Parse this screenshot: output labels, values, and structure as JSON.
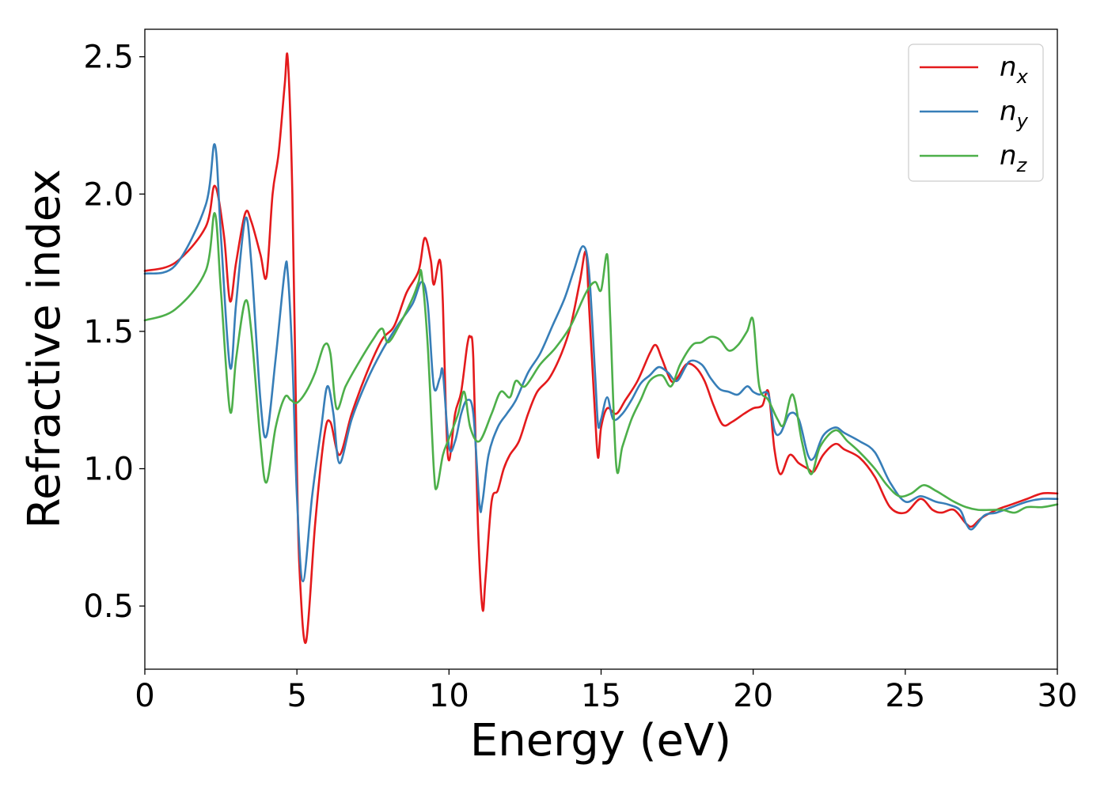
{
  "chart_data": {
    "type": "line",
    "xlabel": "Energy (eV)",
    "ylabel": "Refractive index",
    "xlim": [
      0,
      30
    ],
    "ylim": [
      0.27,
      2.6
    ],
    "xticks": [
      0,
      5,
      10,
      15,
      20,
      25,
      30
    ],
    "xtick_labels": [
      "0",
      "5",
      "10",
      "15",
      "20",
      "25",
      "30"
    ],
    "yticks": [
      0.5,
      1.0,
      1.5,
      2.0,
      2.5
    ],
    "ytick_labels": [
      "0.5",
      "1.0",
      "1.5",
      "2.0",
      "2.5"
    ],
    "grid": false,
    "legend": {
      "placement": "top-right"
    },
    "series": [
      {
        "name": "n",
        "subscript": "x",
        "color": "#e41a1c",
        "x": [
          0,
          1,
          2,
          2.3,
          2.6,
          2.8,
          3.0,
          3.3,
          3.5,
          3.8,
          4.0,
          4.2,
          4.4,
          4.6,
          4.7,
          4.85,
          5.0,
          5.1,
          5.3,
          5.6,
          5.9,
          6.1,
          6.4,
          6.8,
          7.3,
          7.8,
          8.2,
          8.6,
          9.0,
          9.2,
          9.4,
          9.5,
          9.7,
          9.8,
          9.9,
          10.0,
          10.2,
          10.4,
          10.6,
          10.7,
          10.8,
          10.95,
          11.1,
          11.2,
          11.4,
          11.6,
          11.8,
          12.0,
          12.3,
          12.6,
          12.9,
          13.3,
          13.7,
          14.0,
          14.3,
          14.5,
          14.6,
          14.8,
          14.9,
          15.0,
          15.2,
          15.5,
          15.8,
          16.2,
          16.6,
          16.8,
          17.0,
          17.3,
          17.5,
          17.8,
          18.1,
          18.4,
          18.7,
          19.0,
          19.3,
          19.7,
          20.0,
          20.3,
          20.5,
          20.7,
          20.9,
          21.2,
          21.5,
          21.8,
          22.0,
          22.3,
          22.7,
          23.0,
          23.5,
          24.0,
          24.5,
          25.0,
          25.5,
          25.9,
          26.2,
          26.6,
          27.0,
          27.2,
          27.5,
          28.0,
          28.5,
          29.0,
          29.5,
          30.0
        ],
        "values": [
          1.72,
          1.75,
          1.88,
          2.03,
          1.85,
          1.61,
          1.75,
          1.93,
          1.9,
          1.78,
          1.7,
          2.0,
          2.15,
          2.4,
          2.49,
          2.0,
          1.0,
          0.6,
          0.37,
          0.8,
          1.12,
          1.17,
          1.05,
          1.2,
          1.35,
          1.47,
          1.52,
          1.64,
          1.72,
          1.84,
          1.76,
          1.67,
          1.76,
          1.6,
          1.2,
          1.03,
          1.2,
          1.28,
          1.45,
          1.48,
          1.4,
          0.8,
          0.49,
          0.6,
          0.88,
          0.92,
          1.0,
          1.05,
          1.1,
          1.2,
          1.28,
          1.33,
          1.42,
          1.52,
          1.68,
          1.79,
          1.6,
          1.2,
          1.04,
          1.15,
          1.22,
          1.2,
          1.25,
          1.32,
          1.42,
          1.45,
          1.4,
          1.32,
          1.33,
          1.38,
          1.37,
          1.32,
          1.23,
          1.16,
          1.17,
          1.2,
          1.22,
          1.23,
          1.28,
          1.07,
          0.98,
          1.05,
          1.02,
          1.0,
          0.99,
          1.05,
          1.09,
          1.07,
          1.04,
          0.97,
          0.86,
          0.84,
          0.89,
          0.85,
          0.84,
          0.85,
          0.8,
          0.79,
          0.82,
          0.85,
          0.87,
          0.89,
          0.91,
          0.91
        ]
      },
      {
        "name": "n",
        "subscript": "y",
        "color": "#377eb8",
        "x": [
          0,
          1,
          2,
          2.3,
          2.5,
          2.8,
          3.0,
          3.3,
          3.5,
          3.8,
          4.0,
          4.3,
          4.6,
          4.7,
          4.85,
          5.0,
          5.2,
          5.5,
          5.8,
          6.0,
          6.2,
          6.4,
          6.8,
          7.3,
          7.8,
          8.3,
          8.8,
          9.1,
          9.3,
          9.5,
          9.7,
          9.8,
          10.0,
          10.2,
          10.4,
          10.6,
          10.8,
          11.0,
          11.1,
          11.3,
          11.6,
          11.9,
          12.2,
          12.6,
          13.0,
          13.4,
          13.8,
          14.1,
          14.4,
          14.6,
          14.8,
          14.9,
          15.0,
          15.2,
          15.4,
          15.7,
          16.0,
          16.3,
          16.6,
          16.9,
          17.2,
          17.5,
          17.9,
          18.3,
          18.6,
          18.9,
          19.2,
          19.5,
          19.8,
          20.0,
          20.2,
          20.5,
          20.7,
          20.9,
          21.2,
          21.5,
          21.8,
          22.0,
          22.3,
          22.7,
          23.0,
          23.5,
          24.0,
          24.5,
          25.0,
          25.5,
          26.0,
          26.4,
          26.8,
          27.0,
          27.2,
          27.6,
          28.0,
          28.5,
          29.0,
          29.5,
          30.0
        ],
        "values": [
          1.71,
          1.74,
          1.96,
          2.18,
          1.85,
          1.37,
          1.6,
          1.91,
          1.75,
          1.25,
          1.12,
          1.4,
          1.72,
          1.71,
          1.4,
          0.9,
          0.59,
          0.9,
          1.15,
          1.3,
          1.2,
          1.02,
          1.18,
          1.32,
          1.43,
          1.52,
          1.6,
          1.68,
          1.6,
          1.3,
          1.33,
          1.35,
          1.08,
          1.1,
          1.2,
          1.25,
          1.2,
          0.87,
          0.88,
          1.05,
          1.15,
          1.2,
          1.25,
          1.35,
          1.42,
          1.52,
          1.62,
          1.72,
          1.81,
          1.72,
          1.35,
          1.16,
          1.18,
          1.26,
          1.18,
          1.2,
          1.25,
          1.31,
          1.34,
          1.37,
          1.35,
          1.32,
          1.39,
          1.38,
          1.33,
          1.29,
          1.28,
          1.27,
          1.3,
          1.28,
          1.27,
          1.27,
          1.14,
          1.13,
          1.2,
          1.18,
          1.05,
          1.04,
          1.12,
          1.15,
          1.13,
          1.1,
          1.06,
          0.95,
          0.88,
          0.9,
          0.88,
          0.87,
          0.85,
          0.8,
          0.78,
          0.83,
          0.84,
          0.86,
          0.88,
          0.89,
          0.89
        ]
      },
      {
        "name": "n",
        "subscript": "z",
        "color": "#4daf4a",
        "x": [
          0,
          1,
          2,
          2.3,
          2.5,
          2.8,
          3.0,
          3.3,
          3.5,
          3.8,
          4.0,
          4.3,
          4.6,
          4.8,
          5.0,
          5.3,
          5.6,
          5.9,
          6.1,
          6.3,
          6.6,
          7.0,
          7.5,
          7.8,
          8.0,
          8.4,
          8.8,
          9.0,
          9.1,
          9.3,
          9.5,
          9.6,
          9.8,
          10.0,
          10.3,
          10.5,
          10.7,
          11.0,
          11.4,
          11.7,
          12.0,
          12.2,
          12.5,
          13.0,
          13.5,
          14.0,
          14.5,
          14.8,
          15.0,
          15.2,
          15.3,
          15.5,
          15.7,
          16.0,
          16.3,
          16.6,
          17.0,
          17.3,
          17.6,
          18.0,
          18.3,
          18.6,
          18.9,
          19.2,
          19.5,
          19.8,
          20.0,
          20.2,
          20.5,
          20.8,
          21.0,
          21.3,
          21.6,
          21.9,
          22.2,
          22.7,
          23.1,
          23.5,
          24.0,
          24.4,
          24.8,
          25.2,
          25.6,
          26.0,
          26.3,
          26.6,
          27.0,
          27.4,
          27.8,
          28.2,
          28.6,
          29.0,
          29.5,
          30.0
        ],
        "values": [
          1.54,
          1.58,
          1.72,
          1.93,
          1.65,
          1.21,
          1.4,
          1.61,
          1.5,
          1.1,
          0.95,
          1.15,
          1.26,
          1.25,
          1.24,
          1.28,
          1.35,
          1.45,
          1.42,
          1.22,
          1.3,
          1.38,
          1.47,
          1.51,
          1.46,
          1.53,
          1.62,
          1.68,
          1.71,
          1.45,
          1.0,
          0.93,
          1.05,
          1.11,
          1.2,
          1.28,
          1.15,
          1.1,
          1.2,
          1.28,
          1.26,
          1.32,
          1.3,
          1.38,
          1.44,
          1.52,
          1.64,
          1.68,
          1.65,
          1.78,
          1.55,
          1.01,
          1.08,
          1.18,
          1.25,
          1.32,
          1.34,
          1.3,
          1.38,
          1.45,
          1.46,
          1.48,
          1.47,
          1.43,
          1.45,
          1.5,
          1.54,
          1.3,
          1.25,
          1.18,
          1.16,
          1.27,
          1.1,
          0.98,
          1.08,
          1.14,
          1.1,
          1.06,
          1.0,
          0.94,
          0.9,
          0.91,
          0.94,
          0.92,
          0.9,
          0.88,
          0.86,
          0.85,
          0.85,
          0.85,
          0.84,
          0.86,
          0.86,
          0.87
        ]
      }
    ]
  }
}
